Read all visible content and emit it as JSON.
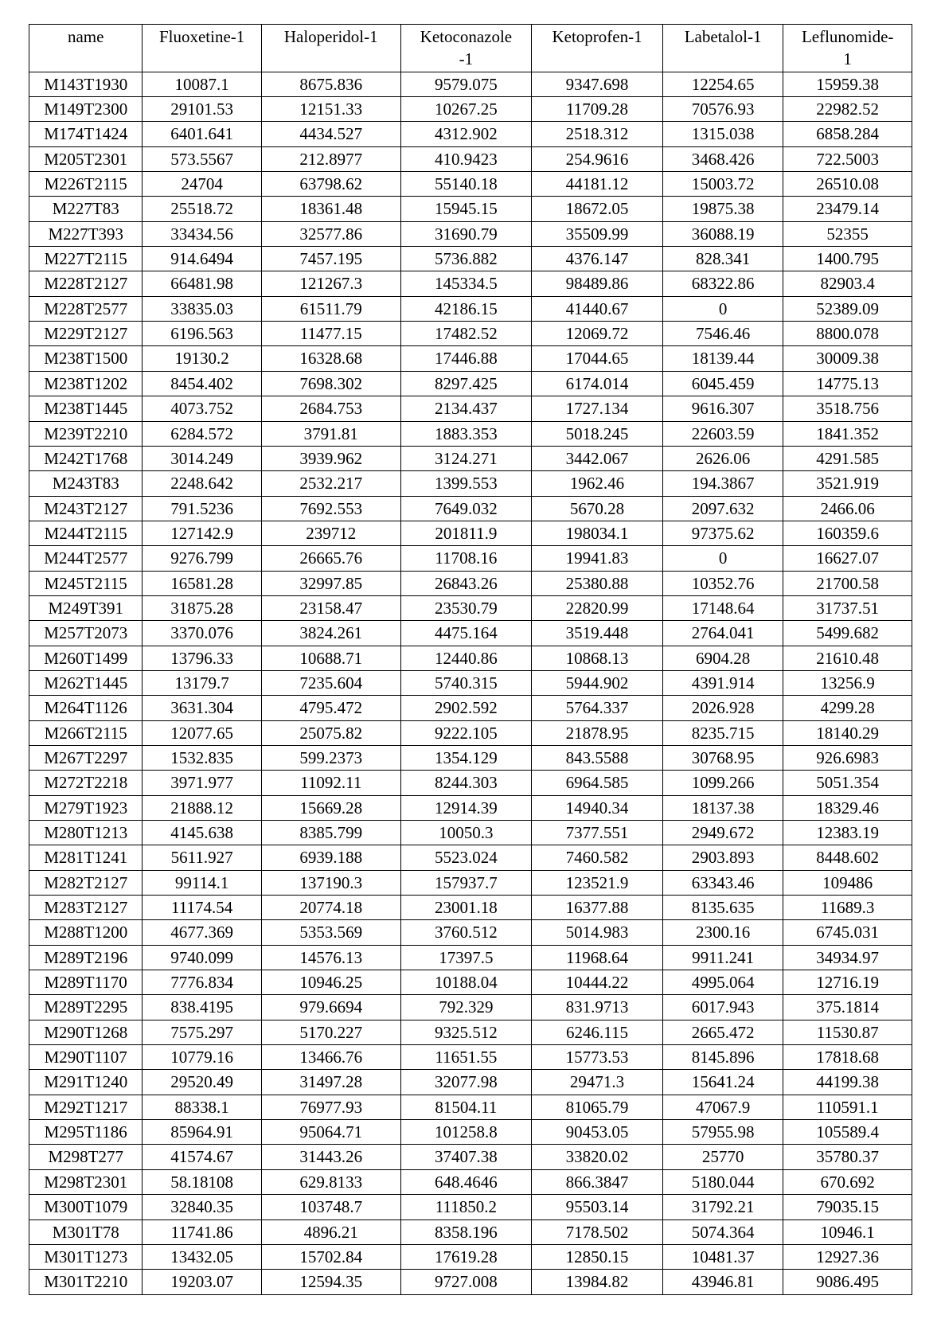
{
  "table": {
    "headers": {
      "name": "name",
      "c1": "Fluoxetine-1",
      "c2": "Haloperidol-1",
      "c3_top": "Ketoconazole",
      "c3_sub": "-1",
      "c4": "Ketoprofen-1",
      "c5": "Labetalol-1",
      "c6_top": "Leflunomide-",
      "c6_sub": "1"
    },
    "rows": [
      {
        "name": "M143T1930",
        "c1": "10087.1",
        "c2": "8675.836",
        "c3": "9579.075",
        "c4": "9347.698",
        "c5": "12254.65",
        "c6": "15959.38"
      },
      {
        "name": "M149T2300",
        "c1": "29101.53",
        "c2": "12151.33",
        "c3": "10267.25",
        "c4": "11709.28",
        "c5": "70576.93",
        "c6": "22982.52"
      },
      {
        "name": "M174T1424",
        "c1": "6401.641",
        "c2": "4434.527",
        "c3": "4312.902",
        "c4": "2518.312",
        "c5": "1315.038",
        "c6": "6858.284"
      },
      {
        "name": "M205T2301",
        "c1": "573.5567",
        "c2": "212.8977",
        "c3": "410.9423",
        "c4": "254.9616",
        "c5": "3468.426",
        "c6": "722.5003"
      },
      {
        "name": "M226T2115",
        "c1": "24704",
        "c2": "63798.62",
        "c3": "55140.18",
        "c4": "44181.12",
        "c5": "15003.72",
        "c6": "26510.08"
      },
      {
        "name": "M227T83",
        "c1": "25518.72",
        "c2": "18361.48",
        "c3": "15945.15",
        "c4": "18672.05",
        "c5": "19875.38",
        "c6": "23479.14"
      },
      {
        "name": "M227T393",
        "c1": "33434.56",
        "c2": "32577.86",
        "c3": "31690.79",
        "c4": "35509.99",
        "c5": "36088.19",
        "c6": "52355"
      },
      {
        "name": "M227T2115",
        "c1": "914.6494",
        "c2": "7457.195",
        "c3": "5736.882",
        "c4": "4376.147",
        "c5": "828.341",
        "c6": "1400.795"
      },
      {
        "name": "M228T2127",
        "c1": "66481.98",
        "c2": "121267.3",
        "c3": "145334.5",
        "c4": "98489.86",
        "c5": "68322.86",
        "c6": "82903.4"
      },
      {
        "name": "M228T2577",
        "c1": "33835.03",
        "c2": "61511.79",
        "c3": "42186.15",
        "c4": "41440.67",
        "c5": "0",
        "c6": "52389.09"
      },
      {
        "name": "M229T2127",
        "c1": "6196.563",
        "c2": "11477.15",
        "c3": "17482.52",
        "c4": "12069.72",
        "c5": "7546.46",
        "c6": "8800.078"
      },
      {
        "name": "M238T1500",
        "c1": "19130.2",
        "c2": "16328.68",
        "c3": "17446.88",
        "c4": "17044.65",
        "c5": "18139.44",
        "c6": "30009.38"
      },
      {
        "name": "M238T1202",
        "c1": "8454.402",
        "c2": "7698.302",
        "c3": "8297.425",
        "c4": "6174.014",
        "c5": "6045.459",
        "c6": "14775.13"
      },
      {
        "name": "M238T1445",
        "c1": "4073.752",
        "c2": "2684.753",
        "c3": "2134.437",
        "c4": "1727.134",
        "c5": "9616.307",
        "c6": "3518.756"
      },
      {
        "name": "M239T2210",
        "c1": "6284.572",
        "c2": "3791.81",
        "c3": "1883.353",
        "c4": "5018.245",
        "c5": "22603.59",
        "c6": "1841.352"
      },
      {
        "name": "M242T1768",
        "c1": "3014.249",
        "c2": "3939.962",
        "c3": "3124.271",
        "c4": "3442.067",
        "c5": "2626.06",
        "c6": "4291.585"
      },
      {
        "name": "M243T83",
        "c1": "2248.642",
        "c2": "2532.217",
        "c3": "1399.553",
        "c4": "1962.46",
        "c5": "194.3867",
        "c6": "3521.919"
      },
      {
        "name": "M243T2127",
        "c1": "791.5236",
        "c2": "7692.553",
        "c3": "7649.032",
        "c4": "5670.28",
        "c5": "2097.632",
        "c6": "2466.06"
      },
      {
        "name": "M244T2115",
        "c1": "127142.9",
        "c2": "239712",
        "c3": "201811.9",
        "c4": "198034.1",
        "c5": "97375.62",
        "c6": "160359.6"
      },
      {
        "name": "M244T2577",
        "c1": "9276.799",
        "c2": "26665.76",
        "c3": "11708.16",
        "c4": "19941.83",
        "c5": "0",
        "c6": "16627.07"
      },
      {
        "name": "M245T2115",
        "c1": "16581.28",
        "c2": "32997.85",
        "c3": "26843.26",
        "c4": "25380.88",
        "c5": "10352.76",
        "c6": "21700.58"
      },
      {
        "name": "M249T391",
        "c1": "31875.28",
        "c2": "23158.47",
        "c3": "23530.79",
        "c4": "22820.99",
        "c5": "17148.64",
        "c6": "31737.51"
      },
      {
        "name": "M257T2073",
        "c1": "3370.076",
        "c2": "3824.261",
        "c3": "4475.164",
        "c4": "3519.448",
        "c5": "2764.041",
        "c6": "5499.682"
      },
      {
        "name": "M260T1499",
        "c1": "13796.33",
        "c2": "10688.71",
        "c3": "12440.86",
        "c4": "10868.13",
        "c5": "6904.28",
        "c6": "21610.48"
      },
      {
        "name": "M262T1445",
        "c1": "13179.7",
        "c2": "7235.604",
        "c3": "5740.315",
        "c4": "5944.902",
        "c5": "4391.914",
        "c6": "13256.9"
      },
      {
        "name": "M264T1126",
        "c1": "3631.304",
        "c2": "4795.472",
        "c3": "2902.592",
        "c4": "5764.337",
        "c5": "2026.928",
        "c6": "4299.28"
      },
      {
        "name": "M266T2115",
        "c1": "12077.65",
        "c2": "25075.82",
        "c3": "9222.105",
        "c4": "21878.95",
        "c5": "8235.715",
        "c6": "18140.29"
      },
      {
        "name": "M267T2297",
        "c1": "1532.835",
        "c2": "599.2373",
        "c3": "1354.129",
        "c4": "843.5588",
        "c5": "30768.95",
        "c6": "926.6983"
      },
      {
        "name": "M272T2218",
        "c1": "3971.977",
        "c2": "11092.11",
        "c3": "8244.303",
        "c4": "6964.585",
        "c5": "1099.266",
        "c6": "5051.354"
      },
      {
        "name": "M279T1923",
        "c1": "21888.12",
        "c2": "15669.28",
        "c3": "12914.39",
        "c4": "14940.34",
        "c5": "18137.38",
        "c6": "18329.46"
      },
      {
        "name": "M280T1213",
        "c1": "4145.638",
        "c2": "8385.799",
        "c3": "10050.3",
        "c4": "7377.551",
        "c5": "2949.672",
        "c6": "12383.19"
      },
      {
        "name": "M281T1241",
        "c1": "5611.927",
        "c2": "6939.188",
        "c3": "5523.024",
        "c4": "7460.582",
        "c5": "2903.893",
        "c6": "8448.602"
      },
      {
        "name": "M282T2127",
        "c1": "99114.1",
        "c2": "137190.3",
        "c3": "157937.7",
        "c4": "123521.9",
        "c5": "63343.46",
        "c6": "109486"
      },
      {
        "name": "M283T2127",
        "c1": "11174.54",
        "c2": "20774.18",
        "c3": "23001.18",
        "c4": "16377.88",
        "c5": "8135.635",
        "c6": "11689.3"
      },
      {
        "name": "M288T1200",
        "c1": "4677.369",
        "c2": "5353.569",
        "c3": "3760.512",
        "c4": "5014.983",
        "c5": "2300.16",
        "c6": "6745.031"
      },
      {
        "name": "M289T2196",
        "c1": "9740.099",
        "c2": "14576.13",
        "c3": "17397.5",
        "c4": "11968.64",
        "c5": "9911.241",
        "c6": "34934.97"
      },
      {
        "name": "M289T1170",
        "c1": "7776.834",
        "c2": "10946.25",
        "c3": "10188.04",
        "c4": "10444.22",
        "c5": "4995.064",
        "c6": "12716.19"
      },
      {
        "name": "M289T2295",
        "c1": "838.4195",
        "c2": "979.6694",
        "c3": "792.329",
        "c4": "831.9713",
        "c5": "6017.943",
        "c6": "375.1814"
      },
      {
        "name": "M290T1268",
        "c1": "7575.297",
        "c2": "5170.227",
        "c3": "9325.512",
        "c4": "6246.115",
        "c5": "2665.472",
        "c6": "11530.87"
      },
      {
        "name": "M290T1107",
        "c1": "10779.16",
        "c2": "13466.76",
        "c3": "11651.55",
        "c4": "15773.53",
        "c5": "8145.896",
        "c6": "17818.68"
      },
      {
        "name": "M291T1240",
        "c1": "29520.49",
        "c2": "31497.28",
        "c3": "32077.98",
        "c4": "29471.3",
        "c5": "15641.24",
        "c6": "44199.38"
      },
      {
        "name": "M292T1217",
        "c1": "88338.1",
        "c2": "76977.93",
        "c3": "81504.11",
        "c4": "81065.79",
        "c5": "47067.9",
        "c6": "110591.1"
      },
      {
        "name": "M295T1186",
        "c1": "85964.91",
        "c2": "95064.71",
        "c3": "101258.8",
        "c4": "90453.05",
        "c5": "57955.98",
        "c6": "105589.4"
      },
      {
        "name": "M298T277",
        "c1": "41574.67",
        "c2": "31443.26",
        "c3": "37407.38",
        "c4": "33820.02",
        "c5": "25770",
        "c6": "35780.37"
      },
      {
        "name": "M298T2301",
        "c1": "58.18108",
        "c2": "629.8133",
        "c3": "648.4646",
        "c4": "866.3847",
        "c5": "5180.044",
        "c6": "670.692"
      },
      {
        "name": "M300T1079",
        "c1": "32840.35",
        "c2": "103748.7",
        "c3": "111850.2",
        "c4": "95503.14",
        "c5": "31792.21",
        "c6": "79035.15"
      },
      {
        "name": "M301T78",
        "c1": "11741.86",
        "c2": "4896.21",
        "c3": "8358.196",
        "c4": "7178.502",
        "c5": "5074.364",
        "c6": "10946.1"
      },
      {
        "name": "M301T1273",
        "c1": "13432.05",
        "c2": "15702.84",
        "c3": "17619.28",
        "c4": "12850.15",
        "c5": "10481.37",
        "c6": "12927.36"
      },
      {
        "name": "M301T2210",
        "c1": "19203.07",
        "c2": "12594.35",
        "c3": "9727.008",
        "c4": "13984.82",
        "c5": "43946.81",
        "c6": "9086.495"
      }
    ]
  }
}
